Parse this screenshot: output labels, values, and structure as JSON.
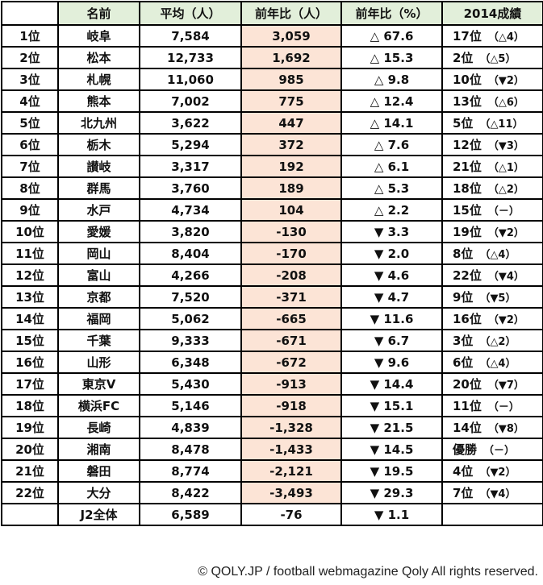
{
  "headers": [
    "",
    "名前",
    "平均（人）",
    "前年比（人）",
    "前年比（%）",
    "2014成績"
  ],
  "rows": [
    {
      "rank": "1位",
      "name": "岐阜",
      "avg": "7,584",
      "diff": "3,059",
      "pct": "△ 67.6",
      "prev": "17位",
      "chg": "（△4）"
    },
    {
      "rank": "2位",
      "name": "松本",
      "avg": "12,733",
      "diff": "1,692",
      "pct": "△ 15.3",
      "prev": "2位",
      "chg": "（△5）"
    },
    {
      "rank": "3位",
      "name": "札幌",
      "avg": "11,060",
      "diff": "985",
      "pct": "△ 9.8",
      "prev": "10位",
      "chg": "（▼2）"
    },
    {
      "rank": "4位",
      "name": "熊本",
      "avg": "7,002",
      "diff": "775",
      "pct": "△ 12.4",
      "prev": "13位",
      "chg": "（△6）"
    },
    {
      "rank": "5位",
      "name": "北九州",
      "avg": "3,622",
      "diff": "447",
      "pct": "△ 14.1",
      "prev": "5位",
      "chg": "（△11）"
    },
    {
      "rank": "6位",
      "name": "栃木",
      "avg": "5,294",
      "diff": "372",
      "pct": "△ 7.6",
      "prev": "12位",
      "chg": "（▼3）"
    },
    {
      "rank": "7位",
      "name": "讃岐",
      "avg": "3,317",
      "diff": "192",
      "pct": "△ 6.1",
      "prev": "21位",
      "chg": "（△1）"
    },
    {
      "rank": "8位",
      "name": "群馬",
      "avg": "3,760",
      "diff": "189",
      "pct": "△ 5.3",
      "prev": "18位",
      "chg": "（△2）"
    },
    {
      "rank": "9位",
      "name": "水戸",
      "avg": "4,734",
      "diff": "104",
      "pct": "△ 2.2",
      "prev": "15位",
      "chg": "（－）"
    },
    {
      "rank": "10位",
      "name": "愛媛",
      "avg": "3,820",
      "diff": "-130",
      "pct": "▼ 3.3",
      "prev": "19位",
      "chg": "（▼2）"
    },
    {
      "rank": "11位",
      "name": "岡山",
      "avg": "8,404",
      "diff": "-170",
      "pct": "▼ 2.0",
      "prev": "8位",
      "chg": "（△4）"
    },
    {
      "rank": "12位",
      "name": "富山",
      "avg": "4,266",
      "diff": "-208",
      "pct": "▼ 4.6",
      "prev": "22位",
      "chg": "（▼4）"
    },
    {
      "rank": "13位",
      "name": "京都",
      "avg": "7,520",
      "diff": "-371",
      "pct": "▼ 4.7",
      "prev": "9位",
      "chg": "（▼5）"
    },
    {
      "rank": "14位",
      "name": "福岡",
      "avg": "5,062",
      "diff": "-665",
      "pct": "▼ 11.6",
      "prev": "16位",
      "chg": "（▼2）"
    },
    {
      "rank": "15位",
      "name": "千葉",
      "avg": "9,333",
      "diff": "-671",
      "pct": "▼ 6.7",
      "prev": "3位",
      "chg": "（△2）"
    },
    {
      "rank": "16位",
      "name": "山形",
      "avg": "6,348",
      "diff": "-672",
      "pct": "▼ 9.6",
      "prev": "6位",
      "chg": "（△4）"
    },
    {
      "rank": "17位",
      "name": "東京V",
      "avg": "5,430",
      "diff": "-913",
      "pct": "▼ 14.4",
      "prev": "20位",
      "chg": "（▼7）"
    },
    {
      "rank": "18位",
      "name": "横浜FC",
      "avg": "5,146",
      "diff": "-918",
      "pct": "▼ 15.1",
      "prev": "11位",
      "chg": "（－）"
    },
    {
      "rank": "19位",
      "name": "長崎",
      "avg": "4,839",
      "diff": "-1,328",
      "pct": "▼ 21.5",
      "prev": "14位",
      "chg": "（▼8）"
    },
    {
      "rank": "20位",
      "name": "湘南",
      "avg": "8,478",
      "diff": "-1,433",
      "pct": "▼ 14.5",
      "prev": "優勝",
      "chg": "（－）"
    },
    {
      "rank": "21位",
      "name": "磐田",
      "avg": "8,774",
      "diff": "-2,121",
      "pct": "▼ 19.5",
      "prev": "4位",
      "chg": "（▼2）"
    },
    {
      "rank": "22位",
      "name": "大分",
      "avg": "8,422",
      "diff": "-3,493",
      "pct": "▼ 29.3",
      "prev": "7位",
      "chg": "（▼4）"
    }
  ],
  "total": {
    "rank": "",
    "name": "J2全体",
    "avg": "6,589",
    "diff": "-76",
    "pct": "▼ 1.1",
    "prev": "",
    "chg": ""
  },
  "footer": "© QOLY.JP / football webmagazine Qoly All rights reserved.",
  "colors": {
    "header_bg": "#e2efda",
    "highlight_bg": "#fce4d6"
  }
}
